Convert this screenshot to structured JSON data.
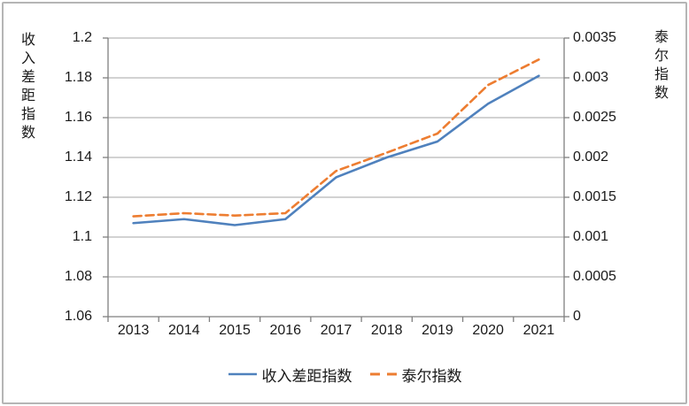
{
  "figure": {
    "background": "#ffffff",
    "frame_border_color": "#b5b5b5"
  },
  "chart_data": {
    "type": "line",
    "title": "",
    "categories": [
      "2013",
      "2014",
      "2015",
      "2016",
      "2017",
      "2018",
      "2019",
      "2020",
      "2021"
    ],
    "series": [
      {
        "name": "收入差距指数",
        "axis": "left",
        "line_style": "solid",
        "color": "#4F81BD",
        "values": [
          1.107,
          1.109,
          1.106,
          1.109,
          1.13,
          1.14,
          1.148,
          1.167,
          1.181
        ]
      },
      {
        "name": "泰尔指数",
        "axis": "right",
        "line_style": "dashed",
        "color": "#ED7D31",
        "values": [
          0.00126,
          0.0013,
          0.00127,
          0.0013,
          0.00183,
          0.00206,
          0.0023,
          0.00291,
          0.00323
        ]
      }
    ],
    "left_axis": {
      "title": "收入差距指数",
      "min": 1.06,
      "max": 1.2,
      "tick_labels": [
        "1.06",
        "1.08",
        "1.1",
        "1.12",
        "1.14",
        "1.16",
        "1.18",
        "1.2"
      ]
    },
    "right_axis": {
      "title": "泰尔指数",
      "min": 0,
      "max": 0.0035,
      "tick_labels": [
        "0",
        "0.0005",
        "0.001",
        "0.0015",
        "0.002",
        "0.0025",
        "0.003",
        "0.0035"
      ]
    },
    "legend": {
      "position": "bottom",
      "entries": [
        "收入差距指数",
        "泰尔指数"
      ]
    },
    "grid": "horizontal",
    "grid_color": "#A6A6A6",
    "axis_color": "#7F7F7F",
    "text_color": "#1a1a1a"
  }
}
